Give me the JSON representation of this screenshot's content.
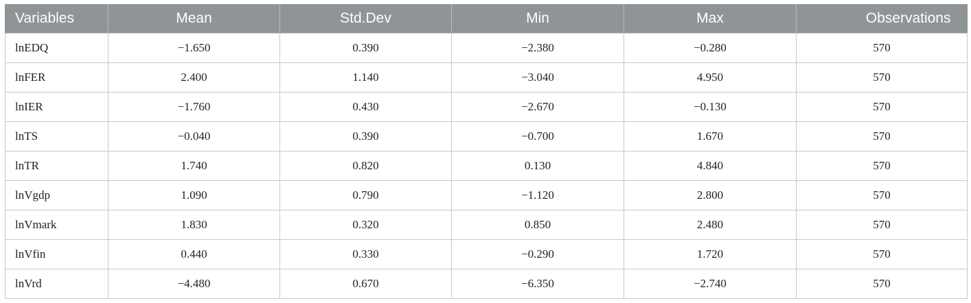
{
  "table": {
    "headers": [
      "Variables",
      "Mean",
      "Std.Dev",
      "Min",
      "Max",
      "Observations"
    ],
    "rows": [
      [
        "lnEDQ",
        "−1.650",
        "0.390",
        "−2.380",
        "−0.280",
        "570"
      ],
      [
        "lnFER",
        "2.400",
        "1.140",
        "−3.040",
        "4.950",
        "570"
      ],
      [
        "lnIER",
        "−1.760",
        "0.430",
        "−2.670",
        "−0.130",
        "570"
      ],
      [
        "lnTS",
        "−0.040",
        "0.390",
        "−0.700",
        "1.670",
        "570"
      ],
      [
        "lnTR",
        "1.740",
        "0.820",
        "0.130",
        "4.840",
        "570"
      ],
      [
        "lnVgdp",
        "1.090",
        "0.790",
        "−1.120",
        "2.800",
        "570"
      ],
      [
        "lnVmark",
        "1.830",
        "0.320",
        "0.850",
        "2.480",
        "570"
      ],
      [
        "lnVfin",
        "0.440",
        "0.330",
        "−0.290",
        "1.720",
        "570"
      ],
      [
        "lnVrd",
        "−4.480",
        "0.670",
        "−6.350",
        "−2.740",
        "570"
      ]
    ]
  }
}
